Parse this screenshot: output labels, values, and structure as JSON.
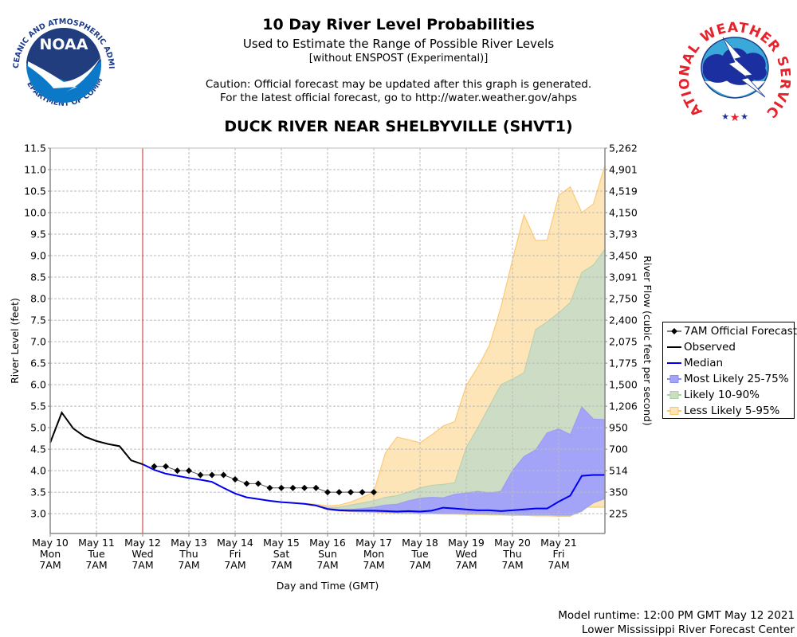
{
  "header": {
    "title": "10 Day River Level Probabilities",
    "subtitle": "Used to Estimate the Range of Possible River Levels",
    "subtitle2": "[without ENSPOST (Experimental)]",
    "caution1": "Caution: Official forecast may be updated after this graph is generated.",
    "caution2": "For the latest official forecast, go to http://water.weather.gov/ahps",
    "station": "DUCK RIVER NEAR SHELBYVILLE (SHVT1)"
  },
  "logos": {
    "noaa": {
      "text": "NOAA",
      "ring_text": "NATIONAL OCEANIC AND ATMOSPHERIC ADMINISTRATION · U.S. DEPARTMENT OF COMMERCE"
    },
    "nws": {
      "ring_text": "NATIONAL WEATHER SERVICE"
    }
  },
  "footer": {
    "model_runtime": "Model runtime: 12:00 PM GMT May 12 2021",
    "center": "Lower Mississippi River Forecast Center"
  },
  "colors": {
    "observed": "#000000",
    "median": "#0000ee",
    "forecast": "#000000",
    "band_25_75": "#a3a3f8",
    "band_10_90": "#cddcc5",
    "band_5_95": "#fde5b7",
    "band_5_95_edge": "#fdc56a",
    "current_time": "#cc2222"
  },
  "chart_data": {
    "type": "area",
    "title": "10 Day River Level Probabilities",
    "xlabel": "Day and Time (GMT)",
    "ylabel": "River Level (feet)",
    "ylabel_right": "River Flow (cubic feet per second)",
    "ylim": [
      2.54,
      11.5
    ],
    "xlim_days": [
      0,
      12
    ],
    "grid": true,
    "legend_position": "right",
    "x_ticks": [
      {
        "day": 0,
        "lines": [
          "May 10",
          "Mon",
          "7AM"
        ]
      },
      {
        "day": 1,
        "lines": [
          "May 11",
          "Tue",
          "7AM"
        ]
      },
      {
        "day": 2,
        "lines": [
          "May 12",
          "Wed",
          "7AM"
        ]
      },
      {
        "day": 3,
        "lines": [
          "May 13",
          "Thu",
          "7AM"
        ]
      },
      {
        "day": 4,
        "lines": [
          "May 14",
          "Fri",
          "7AM"
        ]
      },
      {
        "day": 5,
        "lines": [
          "May 15",
          "Sat",
          "7AM"
        ]
      },
      {
        "day": 6,
        "lines": [
          "May 16",
          "Sun",
          "7AM"
        ]
      },
      {
        "day": 7,
        "lines": [
          "May 17",
          "Mon",
          "7AM"
        ]
      },
      {
        "day": 8,
        "lines": [
          "May 18",
          "Tue",
          "7AM"
        ]
      },
      {
        "day": 9,
        "lines": [
          "May 19",
          "Wed",
          "7AM"
        ]
      },
      {
        "day": 10,
        "lines": [
          "May 20",
          "Thu",
          "7AM"
        ]
      },
      {
        "day": 11,
        "lines": [
          "May 21",
          "Fri",
          "7AM"
        ]
      }
    ],
    "y_ticks": [
      "3.0",
      "3.5",
      "4.0",
      "4.5",
      "5.0",
      "5.5",
      "6.0",
      "6.5",
      "7.0",
      "7.5",
      "8.0",
      "8.5",
      "9.0",
      "9.5",
      "10.0",
      "10.5",
      "11.0",
      "11.5"
    ],
    "y_ticks_right": [
      {
        "stage": 3.0,
        "label": "225"
      },
      {
        "stage": 3.5,
        "label": "350"
      },
      {
        "stage": 4.0,
        "label": "514"
      },
      {
        "stage": 4.5,
        "label": "700"
      },
      {
        "stage": 5.0,
        "label": "950"
      },
      {
        "stage": 5.5,
        "label": "1,206"
      },
      {
        "stage": 6.0,
        "label": "1,500"
      },
      {
        "stage": 6.5,
        "label": "1,775"
      },
      {
        "stage": 7.0,
        "label": "2,075"
      },
      {
        "stage": 7.5,
        "label": "2,400"
      },
      {
        "stage": 8.0,
        "label": "2,750"
      },
      {
        "stage": 8.5,
        "label": "3,091"
      },
      {
        "stage": 9.0,
        "label": "3,450"
      },
      {
        "stage": 9.5,
        "label": "3,793"
      },
      {
        "stage": 10.0,
        "label": "4,150"
      },
      {
        "stage": 10.5,
        "label": "4,519"
      },
      {
        "stage": 11.0,
        "label": "4,901"
      },
      {
        "stage": 11.5,
        "label": "5,262"
      }
    ],
    "current_time_day": 2,
    "legend": [
      {
        "key": "forecast",
        "label": "7AM Official Forecast"
      },
      {
        "key": "observed",
        "label": "Observed"
      },
      {
        "key": "median",
        "label": "Median"
      },
      {
        "key": "band_25_75",
        "label": "Most Likely 25-75%"
      },
      {
        "key": "band_10_90",
        "label": "Likely 10-90%"
      },
      {
        "key": "band_5_95",
        "label": "Less Likely 5-95%"
      }
    ],
    "series": {
      "observed": {
        "x": [
          0,
          0.25,
          0.5,
          0.75,
          1.0,
          1.25,
          1.5,
          1.75,
          2.0
        ],
        "y": [
          4.65,
          5.35,
          4.98,
          4.79,
          4.69,
          4.62,
          4.57,
          4.24,
          4.15
        ]
      },
      "forecast": {
        "x": [
          2.25,
          2.5,
          2.75,
          3.0,
          3.25,
          3.5,
          3.75,
          4.0,
          4.25,
          4.5,
          4.75,
          5.0,
          5.25,
          5.5,
          5.75,
          6.0,
          6.25,
          6.5,
          6.75,
          7.0
        ],
        "y": [
          4.1,
          4.1,
          4.0,
          4.0,
          3.9,
          3.9,
          3.9,
          3.8,
          3.7,
          3.7,
          3.6,
          3.6,
          3.6,
          3.6,
          3.6,
          3.5,
          3.5,
          3.5,
          3.5,
          3.5
        ]
      },
      "x_ens": [
        2.0,
        2.25,
        2.5,
        2.75,
        3.0,
        3.25,
        3.5,
        3.75,
        4.0,
        4.25,
        4.5,
        4.75,
        5.0,
        5.25,
        5.5,
        5.75,
        6.0,
        6.25,
        6.5,
        6.75,
        7.0,
        7.25,
        7.5,
        7.75,
        8.0,
        8.25,
        8.5,
        8.75,
        9.0,
        9.25,
        9.5,
        9.75,
        10.0,
        10.25,
        10.5,
        10.75,
        11.0,
        11.25,
        11.5,
        11.75,
        12.0
      ],
      "median": [
        4.15,
        4.02,
        3.93,
        3.88,
        3.83,
        3.79,
        3.74,
        3.6,
        3.47,
        3.38,
        3.34,
        3.3,
        3.27,
        3.25,
        3.23,
        3.19,
        3.11,
        3.08,
        3.07,
        3.07,
        3.07,
        3.06,
        3.05,
        3.06,
        3.05,
        3.07,
        3.14,
        3.12,
        3.1,
        3.08,
        3.08,
        3.06,
        3.08,
        3.1,
        3.12,
        3.12,
        3.28,
        3.42,
        3.88,
        3.9,
        3.9
      ],
      "p25": [
        4.15,
        4.02,
        3.93,
        3.88,
        3.83,
        3.79,
        3.74,
        3.6,
        3.47,
        3.38,
        3.34,
        3.3,
        3.27,
        3.25,
        3.23,
        3.19,
        3.11,
        3.08,
        3.07,
        3.06,
        3.05,
        3.04,
        3.03,
        3.03,
        3.02,
        3.02,
        3.01,
        3.01,
        3.0,
        3.0,
        3.0,
        2.99,
        2.99,
        2.98,
        2.98,
        2.98,
        2.97,
        2.97,
        3.07,
        3.25,
        3.35
      ],
      "p75": [
        4.15,
        4.02,
        3.93,
        3.88,
        3.83,
        3.79,
        3.74,
        3.6,
        3.47,
        3.38,
        3.34,
        3.3,
        3.27,
        3.25,
        3.23,
        3.19,
        3.12,
        3.1,
        3.1,
        3.12,
        3.15,
        3.2,
        3.22,
        3.3,
        3.36,
        3.38,
        3.37,
        3.45,
        3.48,
        3.52,
        3.48,
        3.52,
        4.0,
        4.33,
        4.48,
        4.88,
        4.97,
        4.84,
        5.48,
        5.2,
        5.19
      ],
      "p10": [
        4.15,
        4.02,
        3.93,
        3.88,
        3.83,
        3.79,
        3.74,
        3.6,
        3.47,
        3.38,
        3.34,
        3.3,
        3.27,
        3.25,
        3.23,
        3.19,
        3.1,
        3.07,
        3.06,
        3.05,
        3.04,
        3.03,
        3.02,
        3.02,
        3.01,
        3.01,
        3.0,
        3.0,
        2.99,
        2.99,
        2.98,
        2.98,
        2.97,
        2.97,
        2.96,
        2.96,
        2.95,
        2.95,
        3.05,
        3.3,
        3.4
      ],
      "p90": [
        4.15,
        4.02,
        3.93,
        3.88,
        3.83,
        3.79,
        3.74,
        3.6,
        3.47,
        3.38,
        3.34,
        3.3,
        3.27,
        3.25,
        3.23,
        3.19,
        3.14,
        3.15,
        3.2,
        3.25,
        3.3,
        3.38,
        3.42,
        3.5,
        3.6,
        3.66,
        3.68,
        3.72,
        4.54,
        5.0,
        5.5,
        6.0,
        6.13,
        6.28,
        7.28,
        7.46,
        7.67,
        7.91,
        8.61,
        8.78,
        9.15
      ],
      "p05": [
        4.15,
        4.02,
        3.93,
        3.88,
        3.83,
        3.79,
        3.74,
        3.6,
        3.47,
        3.38,
        3.34,
        3.3,
        3.27,
        3.25,
        3.23,
        3.19,
        3.09,
        3.06,
        3.05,
        3.04,
        3.03,
        3.02,
        3.01,
        3.01,
        3.0,
        3.0,
        2.99,
        2.99,
        2.98,
        2.98,
        2.97,
        2.97,
        2.96,
        2.96,
        2.95,
        2.95,
        2.94,
        2.94,
        3.15,
        3.15,
        3.15
      ],
      "p95": [
        4.15,
        4.02,
        3.93,
        3.88,
        3.83,
        3.79,
        3.74,
        3.6,
        3.47,
        3.38,
        3.34,
        3.3,
        3.27,
        3.25,
        3.24,
        3.22,
        3.18,
        3.2,
        3.27,
        3.38,
        3.5,
        4.41,
        4.78,
        4.72,
        4.65,
        4.83,
        5.04,
        5.14,
        5.98,
        6.41,
        6.91,
        7.8,
        8.9,
        9.95,
        9.35,
        9.36,
        10.4,
        10.6,
        10.0,
        10.2,
        11.1
      ]
    }
  }
}
